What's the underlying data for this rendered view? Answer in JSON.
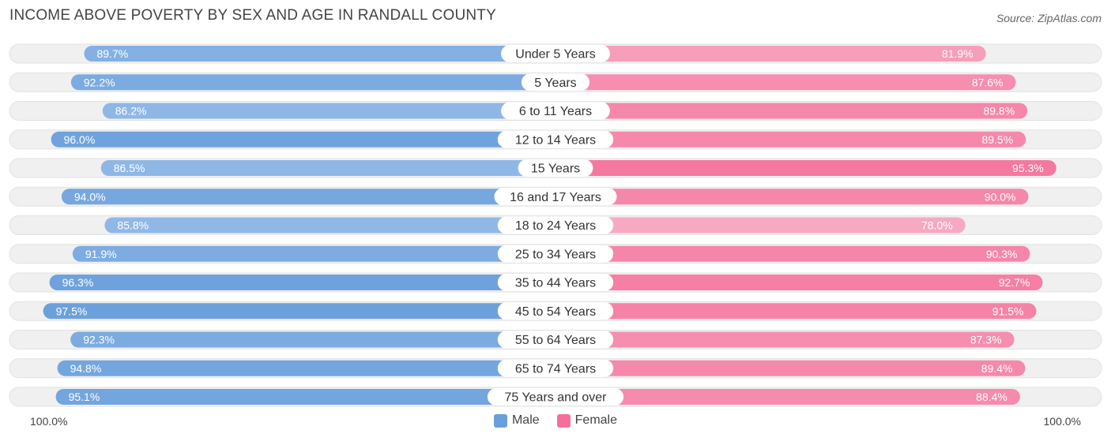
{
  "header": {
    "title": "INCOME ABOVE POVERTY BY SEX AND AGE IN RANDALL COUNTY",
    "source": "Source: ZipAtlas.com"
  },
  "axis": {
    "left_label": "100.0%",
    "right_label": "100.0%"
  },
  "legend": {
    "male": "Male",
    "female": "Female"
  },
  "colors": {
    "male_strong": "#6a9fdb",
    "male_light": "#a9c8ee",
    "female_strong": "#f4709a",
    "female_light": "#f7a9c2",
    "track": "#f0f0f0"
  },
  "chart_data": {
    "type": "bar",
    "orientation": "horizontal-diverging",
    "title": "INCOME ABOVE POVERTY BY SEX AND AGE IN RANDALL COUNTY",
    "xlim": [
      0,
      100
    ],
    "categories": [
      "Under 5 Years",
      "5 Years",
      "6 to 11 Years",
      "12 to 14 Years",
      "15 Years",
      "16 and 17 Years",
      "18 to 24 Years",
      "25 to 34 Years",
      "35 to 44 Years",
      "45 to 54 Years",
      "55 to 64 Years",
      "65 to 74 Years",
      "75 Years and over"
    ],
    "series": [
      {
        "name": "Male",
        "values": [
          89.7,
          92.2,
          86.2,
          96.0,
          86.5,
          94.0,
          85.8,
          91.9,
          96.3,
          97.5,
          92.3,
          94.8,
          95.1
        ],
        "labels": [
          "89.7%",
          "92.2%",
          "86.2%",
          "96.0%",
          "86.5%",
          "94.0%",
          "85.8%",
          "91.9%",
          "96.3%",
          "97.5%",
          "92.3%",
          "94.8%",
          "95.1%"
        ]
      },
      {
        "name": "Female",
        "values": [
          81.9,
          87.6,
          89.8,
          89.5,
          95.3,
          90.0,
          78.0,
          90.3,
          92.7,
          91.5,
          87.3,
          89.4,
          88.4
        ],
        "labels": [
          "81.9%",
          "87.6%",
          "89.8%",
          "89.5%",
          "95.3%",
          "90.0%",
          "78.0%",
          "90.3%",
          "92.7%",
          "91.5%",
          "87.3%",
          "89.4%",
          "88.4%"
        ]
      }
    ]
  }
}
